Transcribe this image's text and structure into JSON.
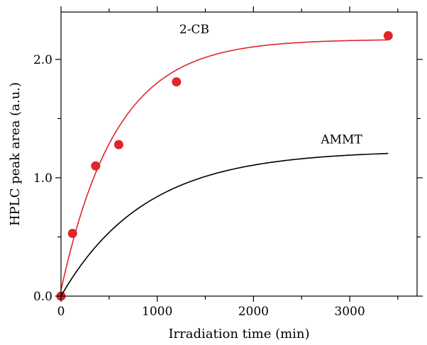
{
  "chart_data": {
    "type": "scatter",
    "xlabel": "Irradiation time (min)",
    "ylabel": "HPLC peak area (a.u.)",
    "xlim": [
      0,
      3700
    ],
    "ylim": [
      0,
      2.4
    ],
    "xticks": [
      {
        "value": 0,
        "label": "0"
      },
      {
        "value": 1000,
        "label": "1000"
      },
      {
        "value": 2000,
        "label": "2000"
      },
      {
        "value": 3000,
        "label": "3000"
      }
    ],
    "yticks": [
      {
        "value": 0,
        "label": "0.0"
      },
      {
        "value": 1.0,
        "label": "1.0"
      },
      {
        "value": 2.0,
        "label": "2.0"
      }
    ],
    "minor_xticks": [
      500,
      1500,
      2500,
      3500
    ],
    "minor_yticks": [
      0.5,
      1.5
    ],
    "grid": false,
    "series": [
      {
        "name": "2-CB",
        "color": "#e0262b",
        "points": [
          {
            "x": 0,
            "y": 0.0
          },
          {
            "x": 120,
            "y": 0.53
          },
          {
            "x": 360,
            "y": 1.1
          },
          {
            "x": 600,
            "y": 1.28
          },
          {
            "x": 1200,
            "y": 1.81
          },
          {
            "x": 3400,
            "y": 2.2
          }
        ],
        "fit": {
          "model": "a*(1-exp(-k*x))+b",
          "a": 2.12,
          "k": 0.00175,
          "b": 0.05,
          "x_range": [
            0,
            3400
          ]
        },
        "label_at": {
          "x": 1230,
          "y": 2.22
        }
      },
      {
        "name": "AMMT",
        "color": "#000000",
        "points": [],
        "fit": {
          "model": "a*(1-exp(-k*x))",
          "a": 1.23,
          "k": 0.00115,
          "b": 0,
          "x_range": [
            0,
            3400
          ]
        },
        "label_at": {
          "x": 2700,
          "y": 1.29
        }
      }
    ]
  }
}
